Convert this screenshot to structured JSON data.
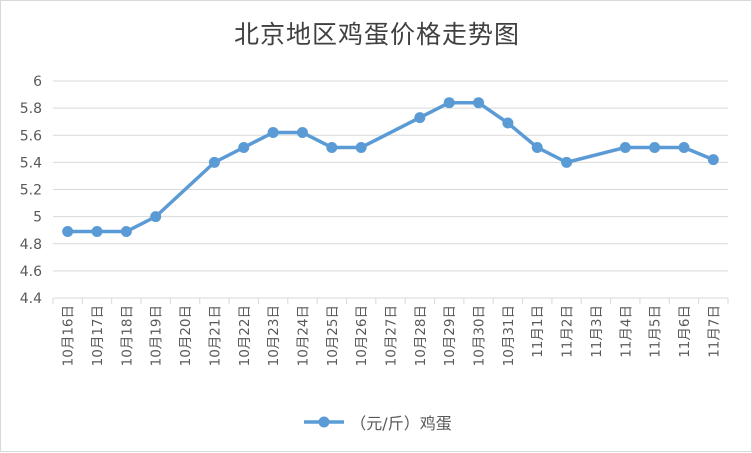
{
  "chart_data": {
    "type": "line",
    "title": "北京地区鸡蛋价格走势图",
    "categories": [
      "10月16日",
      "10月17日",
      "10月18日",
      "10月19日",
      "10月20日",
      "10月21日",
      "10月22日",
      "10月23日",
      "10月24日",
      "10月25日",
      "10月26日",
      "10月27日",
      "10月28日",
      "10月29日",
      "10月30日",
      "10月31日",
      "11月1日",
      "11月2日",
      "11月3日",
      "11月4日",
      "11月5日",
      "11月6日",
      "11月7日"
    ],
    "series": [
      {
        "name": "（元/斤）鸡蛋",
        "values": [
          4.89,
          4.89,
          4.89,
          5.0,
          null,
          5.4,
          5.51,
          5.62,
          5.62,
          5.51,
          5.51,
          null,
          5.73,
          5.84,
          5.84,
          5.69,
          5.51,
          5.4,
          null,
          5.51,
          5.51,
          5.51,
          5.42
        ]
      }
    ],
    "ylim": [
      4.4,
      6
    ],
    "yticks": [
      "4.4",
      "4.6",
      "4.8",
      "5",
      "5.2",
      "5.4",
      "5.6",
      "5.8",
      "6"
    ],
    "grid": true,
    "legend": "bottom",
    "colors": {
      "line": "#5b9bd5",
      "grid": "#d9d9d9",
      "text": "#595959"
    }
  }
}
